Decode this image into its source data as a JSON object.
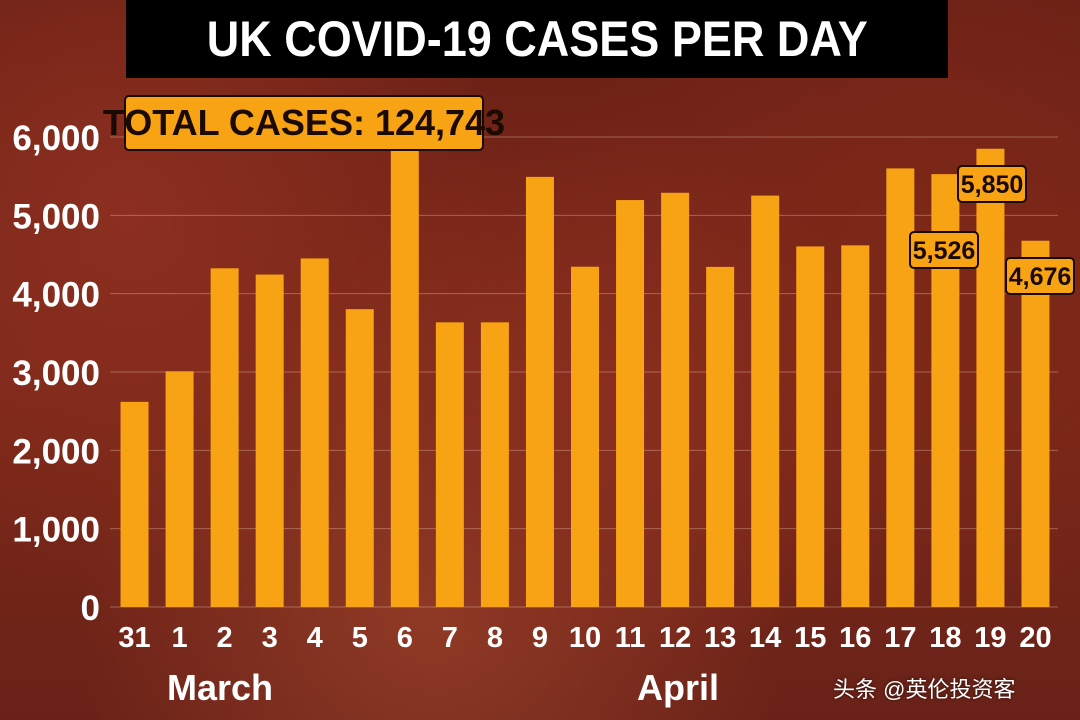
{
  "title": "UK COVID-19 CASES PER DAY",
  "total_label": "TOTAL CASES: 124,743",
  "watermark": "头条 @英伦投资客",
  "colors": {
    "bar": "#f7a314",
    "title_bg": "#000000",
    "title_fg": "#ffffff",
    "label_bg": "#f7a314"
  },
  "chart_data": {
    "type": "bar",
    "title": "UK COVID-19 CASES PER DAY",
    "categories": [
      "31",
      "1",
      "2",
      "3",
      "4",
      "5",
      "6",
      "7",
      "8",
      "9",
      "10",
      "11",
      "12",
      "13",
      "14",
      "15",
      "16",
      "17",
      "18",
      "19",
      "20"
    ],
    "values": [
      2619,
      3009,
      4324,
      4244,
      4450,
      3802,
      5903,
      3634,
      3634,
      5491,
      4344,
      5195,
      5288,
      4342,
      5252,
      4603,
      4617,
      5599,
      5526,
      5850,
      4676
    ],
    "data_labels": [
      {
        "index": 18,
        "text": "5,526"
      },
      {
        "index": 19,
        "text": "5,850"
      },
      {
        "index": 20,
        "text": "4,676"
      }
    ],
    "month_labels": [
      {
        "text": "March",
        "from": 0,
        "to": 2
      },
      {
        "text": "April",
        "from": 1,
        "to": 20
      }
    ],
    "ylim": [
      0,
      6000
    ],
    "yticks": [
      "0",
      "1,000",
      "2,000",
      "3,000",
      "4,000",
      "5,000",
      "6,000"
    ],
    "grid": true,
    "xlabel": "",
    "ylabel": ""
  }
}
